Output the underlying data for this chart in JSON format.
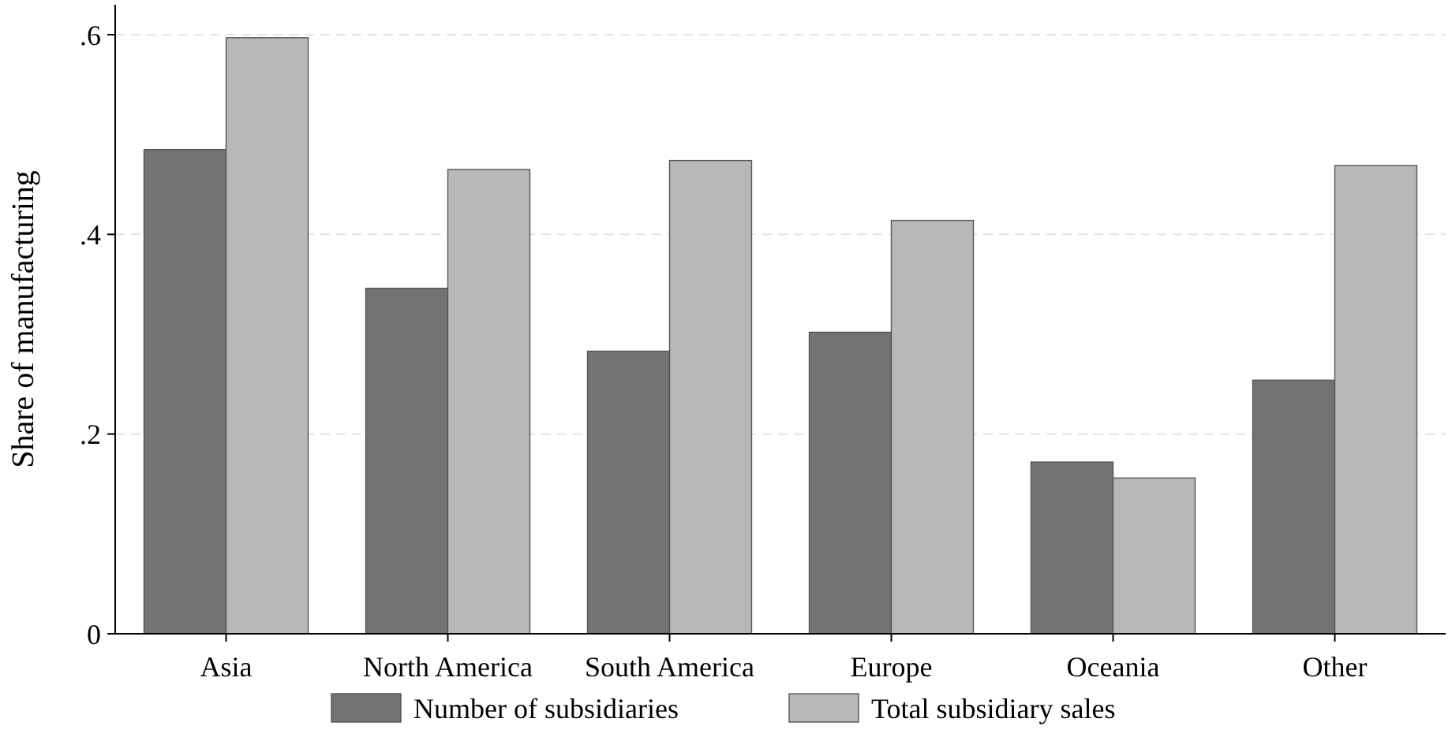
{
  "chart_data": {
    "type": "bar",
    "ylabel": "Share of manufacturing",
    "categories": [
      "Asia",
      "North America",
      "South America",
      "Europe",
      "Oceania",
      "Other"
    ],
    "series": [
      {
        "name": "Number of subsidiaries",
        "color": "#737373",
        "values": [
          0.485,
          0.346,
          0.283,
          0.302,
          0.172,
          0.254
        ]
      },
      {
        "name": "Total subsidiary sales",
        "color": "#b8b8b8",
        "values": [
          0.597,
          0.465,
          0.474,
          0.414,
          0.156,
          0.469
        ]
      }
    ],
    "ylim": [
      0,
      0.63
    ],
    "yticks": [
      0,
      {
        "value": 0.2,
        "label": ".2"
      },
      {
        "value": 0.4,
        "label": ".4"
      },
      {
        "value": 0.6,
        "label": ".6"
      }
    ],
    "grid": "y",
    "legend": "bottom"
  }
}
